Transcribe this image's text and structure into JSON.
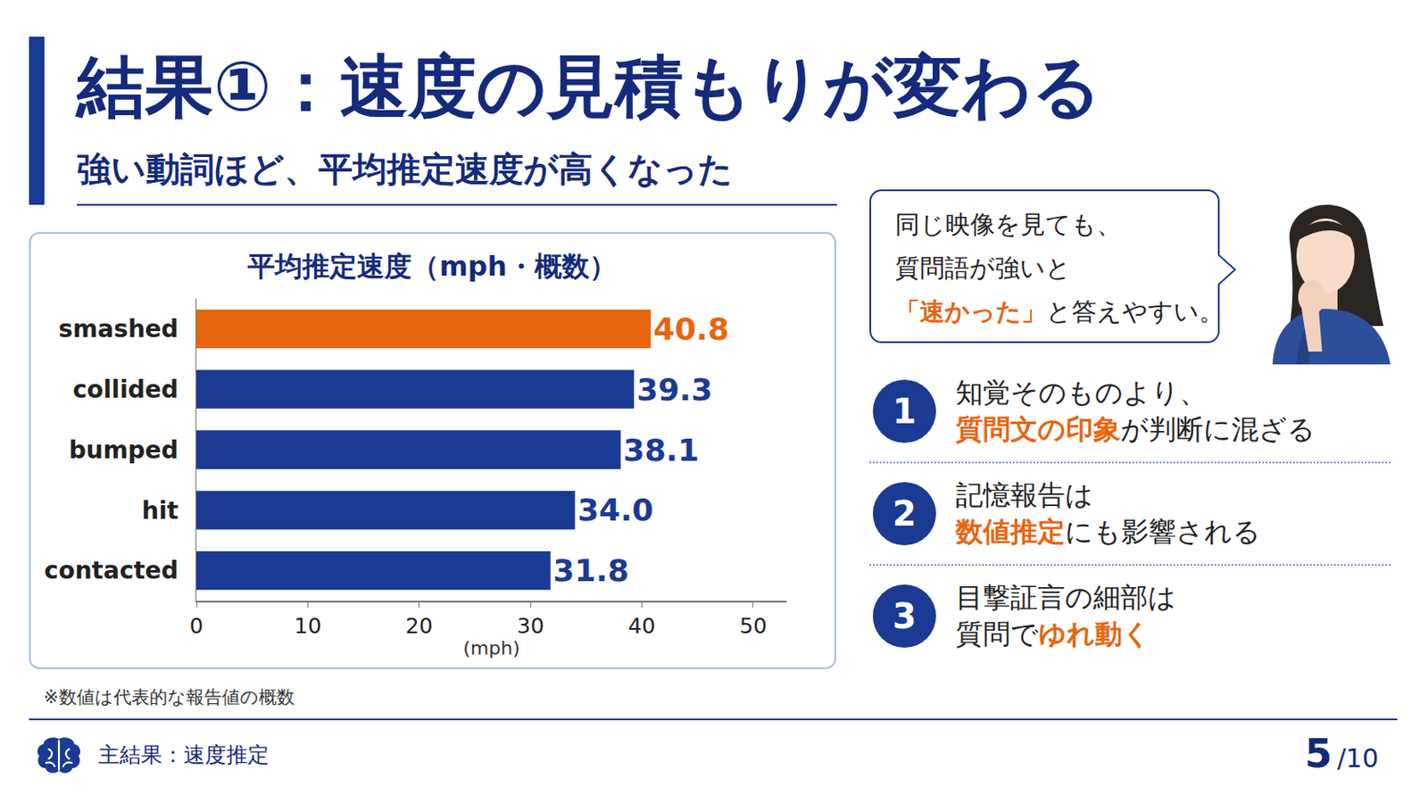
{
  "slide": {
    "title": "結果①：速度の見積もりが変わる",
    "subtitle": "強い動詞ほど、平均推定速度が高くなった",
    "footnote": "※数値は代表的な報告値の概数",
    "bubble": [
      [
        {
          "text": "同じ映像を見ても、"
        }
      ],
      [
        {
          "text": "質問語が強いと"
        }
      ],
      [
        {
          "text": "「速かった」",
          "emphasis": true
        },
        {
          "text": "と答えやすい。"
        }
      ]
    ],
    "points": [
      {
        "number": "1",
        "lines": [
          [
            {
              "text": "知覚そのものより、"
            }
          ],
          [
            {
              "text": "質問文の印象",
              "emphasis": true
            },
            {
              "text": "が判断に混ざる"
            }
          ]
        ]
      },
      {
        "number": "2",
        "lines": [
          [
            {
              "text": "記憶報告は"
            }
          ],
          [
            {
              "text": "数値推定",
              "emphasis": true
            },
            {
              "text": "にも影響される"
            }
          ]
        ]
      },
      {
        "number": "3",
        "lines": [
          [
            {
              "text": "目撃証言の細部は"
            }
          ],
          [
            {
              "text": "質問で"
            },
            {
              "text": "ゆれ動く",
              "emphasis": true
            }
          ]
        ]
      }
    ],
    "footer": "主結果：速度推定",
    "page_current": "5",
    "page_total": "/10"
  },
  "chart_data": {
    "type": "bar",
    "title": "平均推定速度（mph・概数）",
    "x_label": "(mph)",
    "orientation": "horizontal",
    "categories": [
      "smashed",
      "collided",
      "bumped",
      "hit",
      "contacted"
    ],
    "values": [
      40.8,
      39.3,
      38.1,
      34.0,
      31.8
    ],
    "value_labels": [
      "40.8",
      "39.3",
      "38.1",
      "34.0",
      "31.8"
    ],
    "colors": [
      "#e8650f",
      "#1a3a93",
      "#1a3a93",
      "#1a3a93",
      "#1a3a93"
    ],
    "xlim": [
      0,
      53
    ],
    "xticks": [
      0,
      10,
      20,
      30,
      40,
      50
    ],
    "grid": false,
    "data_labels": true
  }
}
